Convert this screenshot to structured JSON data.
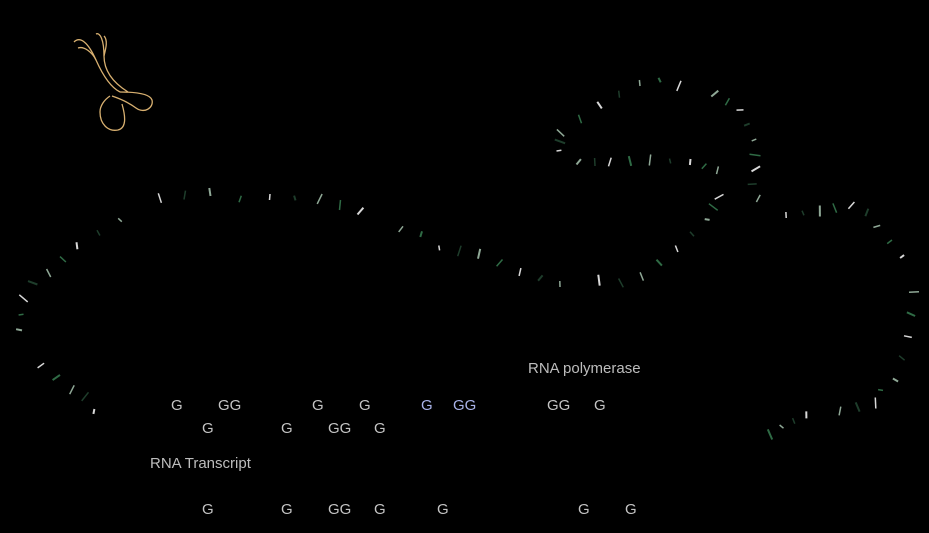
{
  "labels": {
    "rna_polymerase": "RNA polymerase",
    "rna_transcript": "RNA Transcript"
  },
  "rows": {
    "row1": [
      "G",
      "GG",
      "G",
      "G",
      "G",
      "GG",
      "GG",
      "G"
    ],
    "row2": [
      "G",
      "G",
      "GG",
      "G"
    ],
    "row3": [
      "G",
      "G",
      "GG",
      "G",
      "G",
      "G",
      "G"
    ]
  },
  "colors": {
    "background": "#000000",
    "chromosome_outline": "#d8b070",
    "label_text": "#bdbdbd",
    "base_text": "#c4c4c4",
    "highlight_text": "#a9b3e8",
    "strand_light": "#d8d8d8",
    "strand_dark": "#2f6b45",
    "strand_mid": "#8fa896"
  },
  "icons": {
    "chromosome": "chromosome-icon"
  }
}
